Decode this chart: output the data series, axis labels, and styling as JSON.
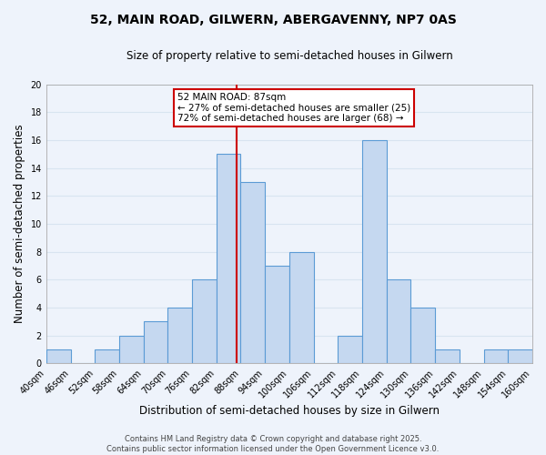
{
  "title": "52, MAIN ROAD, GILWERN, ABERGAVENNY, NP7 0AS",
  "subtitle": "Size of property relative to semi-detached houses in Gilwern",
  "xlabel": "Distribution of semi-detached houses by size in Gilwern",
  "ylabel": "Number of semi-detached properties",
  "bin_edges": [
    40,
    46,
    52,
    58,
    64,
    70,
    76,
    82,
    88,
    94,
    100,
    106,
    112,
    118,
    124,
    130,
    136,
    142,
    148,
    154,
    160
  ],
  "counts": [
    1,
    0,
    1,
    2,
    3,
    4,
    6,
    15,
    13,
    7,
    8,
    0,
    2,
    16,
    6,
    4,
    1,
    0,
    1,
    1
  ],
  "bar_color": "#c5d8f0",
  "bar_edge_color": "#5b9bd5",
  "vline_x": 87,
  "vline_color": "#cc0000",
  "annotation_title": "52 MAIN ROAD: 87sqm",
  "annotation_line1": "← 27% of semi-detached houses are smaller (25)",
  "annotation_line2": "72% of semi-detached houses are larger (68) →",
  "ylim": [
    0,
    20
  ],
  "yticks": [
    0,
    2,
    4,
    6,
    8,
    10,
    12,
    14,
    16,
    18,
    20
  ],
  "footer_line1": "Contains HM Land Registry data © Crown copyright and database right 2025.",
  "footer_line2": "Contains public sector information licensed under the Open Government Licence v3.0.",
  "bg_color": "#eef3fb",
  "grid_color": "#d8e4f0",
  "title_fontsize": 10,
  "subtitle_fontsize": 8.5,
  "axis_label_fontsize": 8.5,
  "tick_fontsize": 7,
  "footer_fontsize": 6,
  "annotation_fontsize": 7.5
}
